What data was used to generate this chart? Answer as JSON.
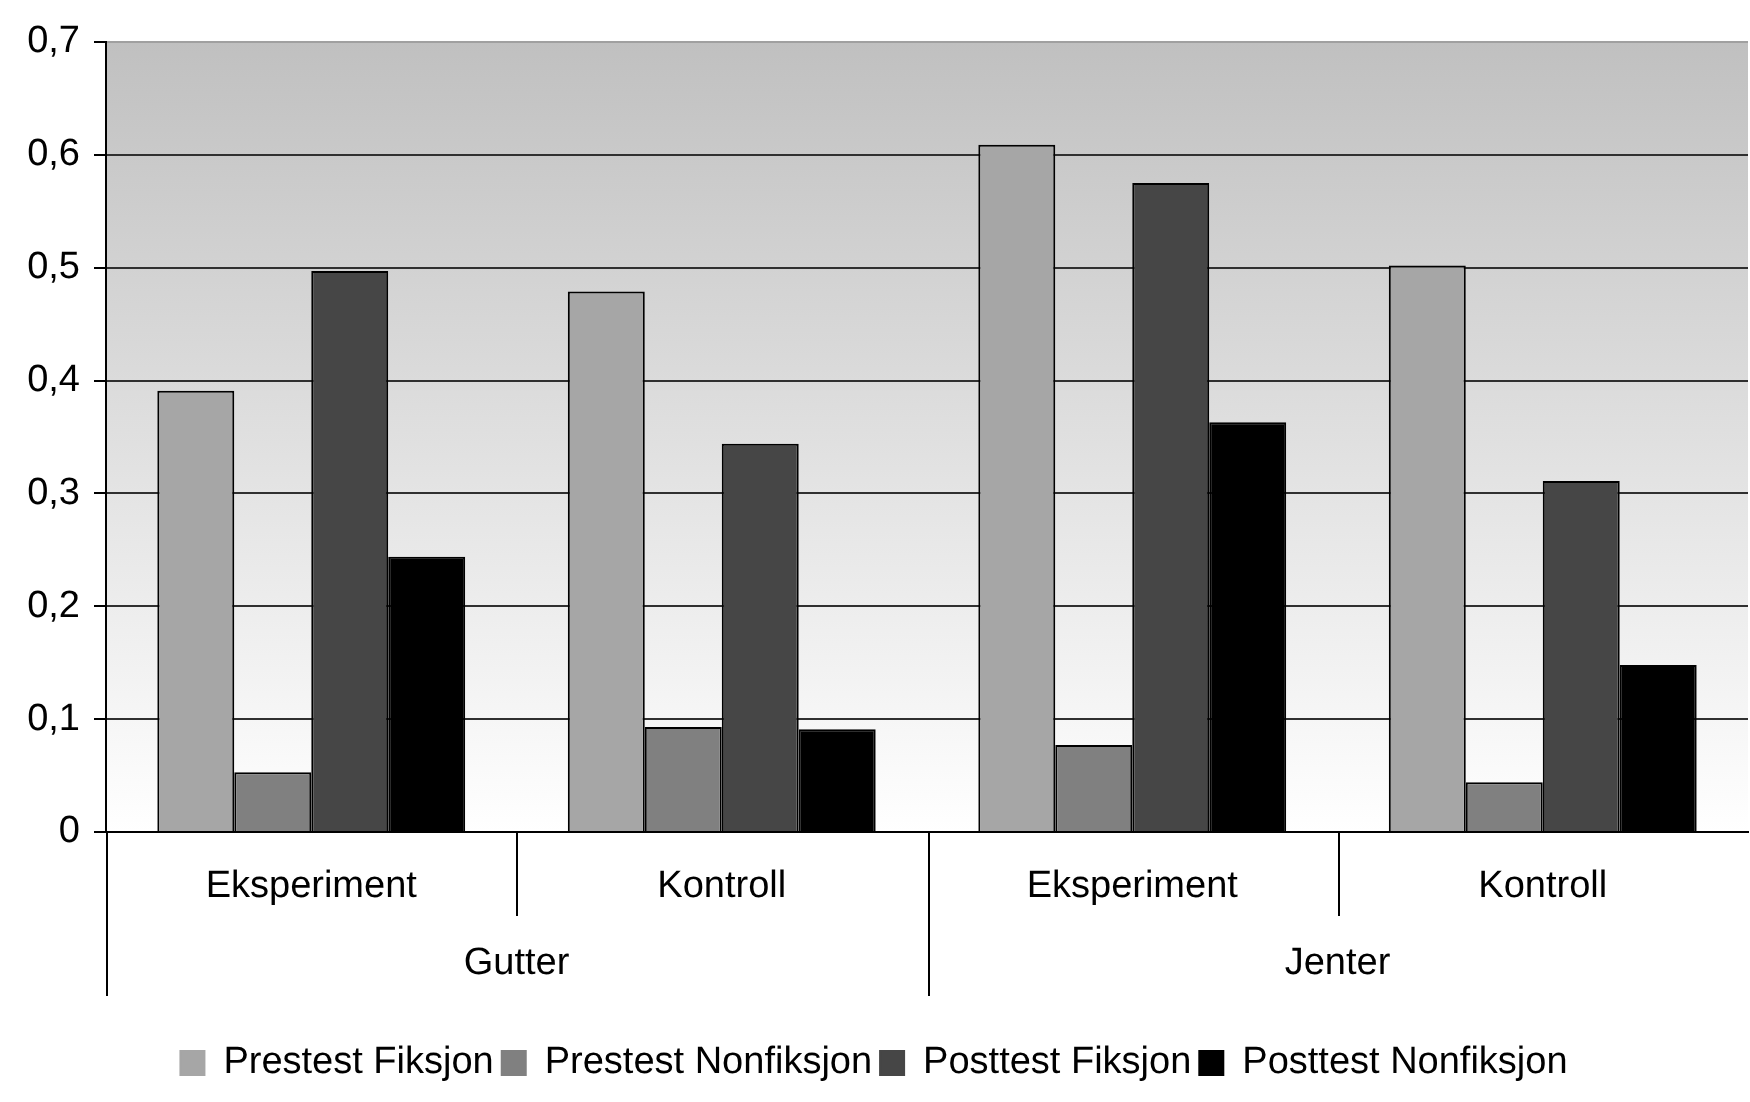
{
  "chart_data": {
    "type": "bar",
    "categories": [
      "Eksperiment",
      "Kontroll",
      "Eksperiment",
      "Kontroll"
    ],
    "annotations": [
      "Gutter",
      "Jenter"
    ],
    "series": [
      {
        "name": "Prestest Fiksjon",
        "color": "#a6a6a6",
        "values": [
          0.391,
          0.479,
          0.609,
          0.502
        ]
      },
      {
        "name": "Prestest Nonfiksjon",
        "color": "#808080",
        "values": [
          0.053,
          0.093,
          0.077,
          0.044
        ]
      },
      {
        "name": "Posttest Fiksjon",
        "color": "#464646",
        "values": [
          0.497,
          0.344,
          0.575,
          0.311
        ]
      },
      {
        "name": "Posttest Nonfiksjon",
        "color": "#000000",
        "values": [
          0.244,
          0.091,
          0.363,
          0.148
        ]
      }
    ],
    "ylim": [
      0,
      0.7
    ],
    "yticks": [
      0,
      {
        "value": 0.1,
        "label": "0,1"
      },
      {
        "value": 0.2,
        "label": "0,2"
      },
      {
        "value": 0.3,
        "label": "0,3"
      },
      {
        "value": 0.4,
        "label": "0,4"
      },
      {
        "value": 0.5,
        "label": "0,5"
      },
      {
        "value": 0.6,
        "label": "0,6"
      },
      {
        "value": 0.7,
        "label": "0,7"
      }
    ],
    "grid": "y",
    "legend": "bottom"
  }
}
